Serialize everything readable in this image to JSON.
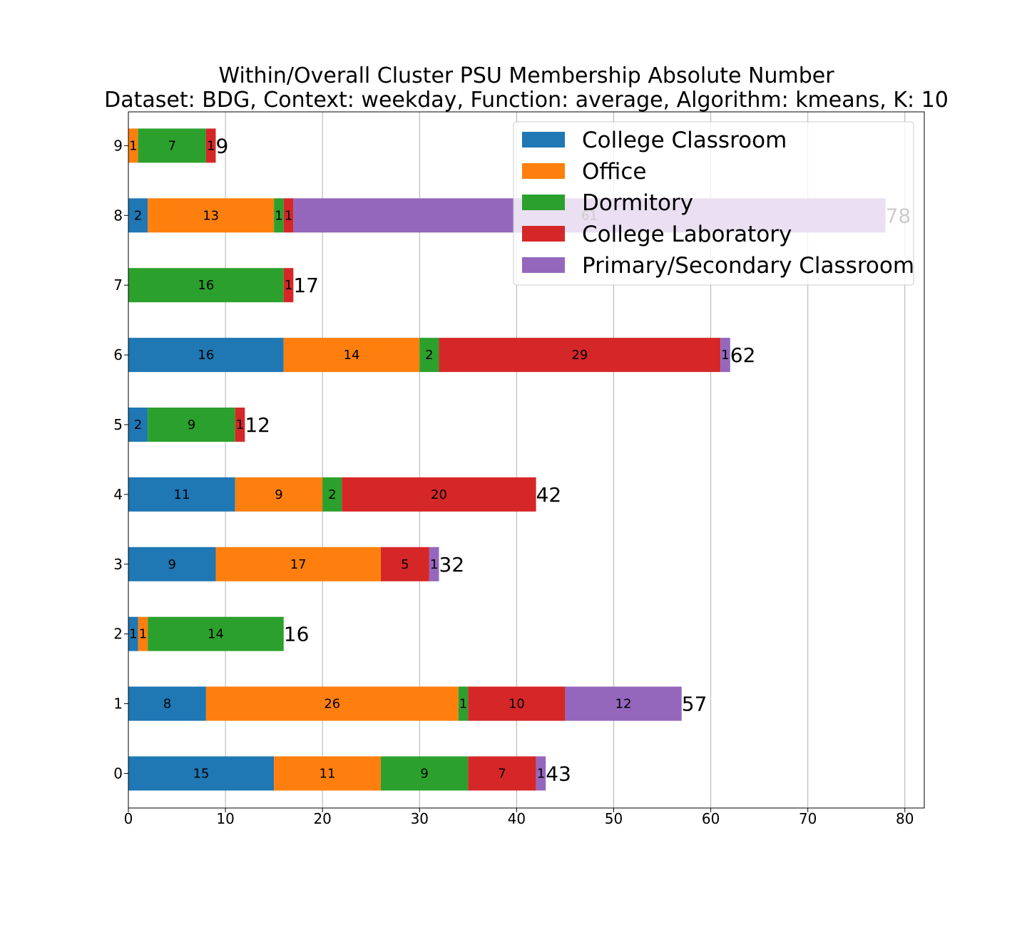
{
  "chart_data": {
    "type": "bar",
    "orientation": "horizontal",
    "stacked": true,
    "title_line1": "Within/Overall Cluster PSU Membership Absolute Number",
    "title_line2": "Dataset: BDG, Context: weekday, Function: average, Algorithm: kmeans, K: 10",
    "xlabel": "",
    "ylabel": "",
    "xlim": [
      0,
      82
    ],
    "xticks": [
      0,
      10,
      20,
      30,
      40,
      50,
      60,
      70,
      80
    ],
    "grid": "vertical",
    "legend_position": "top-right",
    "categories": [
      "0",
      "1",
      "2",
      "3",
      "4",
      "5",
      "6",
      "7",
      "8",
      "9"
    ],
    "series": [
      {
        "name": "College Classroom",
        "color": "#1f77b4",
        "values": [
          15,
          8,
          1,
          9,
          11,
          2,
          16,
          0,
          2,
          0
        ]
      },
      {
        "name": "Office",
        "color": "#ff7f0e",
        "values": [
          11,
          26,
          1,
          17,
          9,
          0,
          14,
          0,
          13,
          1
        ]
      },
      {
        "name": "Dormitory",
        "color": "#2ca02c",
        "values": [
          9,
          1,
          14,
          0,
          2,
          9,
          2,
          16,
          1,
          7
        ]
      },
      {
        "name": "College Laboratory",
        "color": "#d62728",
        "values": [
          7,
          10,
          0,
          5,
          20,
          1,
          29,
          1,
          1,
          1
        ]
      },
      {
        "name": "Primary/Secondary Classroom",
        "color": "#9467bd",
        "values": [
          1,
          12,
          0,
          1,
          0,
          0,
          1,
          0,
          61,
          0
        ]
      }
    ],
    "totals": [
      43,
      57,
      16,
      32,
      42,
      12,
      62,
      17,
      78,
      9
    ]
  }
}
